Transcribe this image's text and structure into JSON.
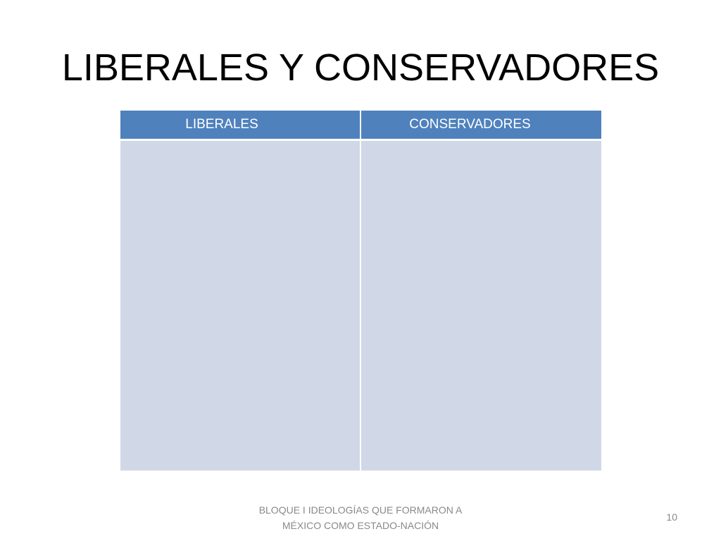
{
  "slide": {
    "title": "LIBERALES Y CONSERVADORES",
    "table": {
      "columns": [
        "LIBERALES",
        "CONSERVADORES"
      ],
      "rows": [
        [
          "",
          ""
        ]
      ],
      "header_color": "#4f81bd",
      "cell_color": "#d0d8e8"
    },
    "footer": {
      "line1": "BLOQUE I IDEOLOGÍAS QUE FORMARON A",
      "line2": "MÉXICO COMO ESTADO-NACIÓN"
    },
    "page_number": "10"
  }
}
